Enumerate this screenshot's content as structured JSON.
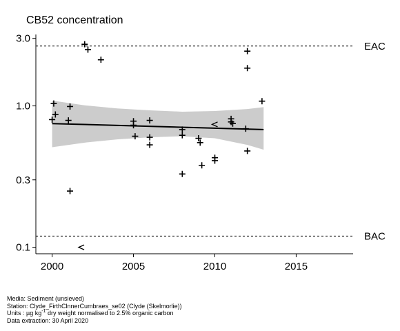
{
  "chart_data": {
    "type": "scatter",
    "title": "CB52 concentration",
    "xlabel": "",
    "ylabel": "",
    "y_scale": "log",
    "xlim": [
      1999,
      2018.5
    ],
    "ylim": [
      0.09,
      3.2
    ],
    "x_ticks": [
      2000,
      2005,
      2010,
      2015
    ],
    "x_tick_labels": [
      "2000",
      "2005",
      "2010",
      "2015"
    ],
    "y_ticks": [
      0.1,
      0.3,
      1.0,
      3.0
    ],
    "y_tick_labels": [
      "0.1",
      "0.3",
      "1.0",
      "3.0"
    ],
    "grid": false,
    "legend": "none",
    "reference_lines": [
      {
        "label": "EAC",
        "value": 2.65,
        "style": "dashed"
      },
      {
        "label": "BAC",
        "value": 0.12,
        "style": "dashed"
      }
    ],
    "points": [
      {
        "x": 2000.0,
        "y": 0.8,
        "marker": "+"
      },
      {
        "x": 2000.1,
        "y": 1.04,
        "marker": "+"
      },
      {
        "x": 2000.2,
        "y": 0.87,
        "marker": "+"
      },
      {
        "x": 2001.0,
        "y": 0.79,
        "marker": "+"
      },
      {
        "x": 2001.1,
        "y": 0.99,
        "marker": "+"
      },
      {
        "x": 2001.1,
        "y": 0.25,
        "marker": "+"
      },
      {
        "x": 2002.0,
        "y": 2.73,
        "marker": "+"
      },
      {
        "x": 2002.2,
        "y": 2.5,
        "marker": "+"
      },
      {
        "x": 2001.8,
        "y": 0.1,
        "marker": "<"
      },
      {
        "x": 2003.0,
        "y": 2.12,
        "marker": "+"
      },
      {
        "x": 2005.0,
        "y": 0.78,
        "marker": "+"
      },
      {
        "x": 2005.0,
        "y": 0.73,
        "marker": "+"
      },
      {
        "x": 2005.1,
        "y": 0.61,
        "marker": "+"
      },
      {
        "x": 2006.0,
        "y": 0.79,
        "marker": "+"
      },
      {
        "x": 2006.0,
        "y": 0.6,
        "marker": "+"
      },
      {
        "x": 2006.0,
        "y": 0.53,
        "marker": "+"
      },
      {
        "x": 2008.0,
        "y": 0.68,
        "marker": "+"
      },
      {
        "x": 2008.0,
        "y": 0.62,
        "marker": "+"
      },
      {
        "x": 2008.0,
        "y": 0.33,
        "marker": "+"
      },
      {
        "x": 2009.0,
        "y": 0.59,
        "marker": "+"
      },
      {
        "x": 2009.1,
        "y": 0.55,
        "marker": "+"
      },
      {
        "x": 2009.2,
        "y": 0.38,
        "marker": "+"
      },
      {
        "x": 2010.0,
        "y": 0.41,
        "marker": "+"
      },
      {
        "x": 2010.0,
        "y": 0.43,
        "marker": "+"
      },
      {
        "x": 2010.0,
        "y": 0.74,
        "marker": "<"
      },
      {
        "x": 2011.0,
        "y": 0.81,
        "marker": "+"
      },
      {
        "x": 2011.0,
        "y": 0.77,
        "marker": "+"
      },
      {
        "x": 2011.1,
        "y": 0.75,
        "marker": "+"
      },
      {
        "x": 2012.0,
        "y": 2.44,
        "marker": "+"
      },
      {
        "x": 2012.0,
        "y": 1.85,
        "marker": "+"
      },
      {
        "x": 2011.9,
        "y": 0.69,
        "marker": "+"
      },
      {
        "x": 2012.0,
        "y": 0.48,
        "marker": "+"
      },
      {
        "x": 2012.9,
        "y": 1.08,
        "marker": "+"
      }
    ],
    "trend": {
      "x": [
        2000,
        2013
      ],
      "y": [
        0.75,
        0.68
      ],
      "band": {
        "x": [
          2000,
          2002,
          2004,
          2006,
          2008,
          2010,
          2012,
          2013
        ],
        "lower": [
          0.51,
          0.55,
          0.58,
          0.6,
          0.61,
          0.59,
          0.53,
          0.49
        ],
        "upper": [
          1.09,
          1.01,
          0.96,
          0.93,
          0.91,
          0.92,
          0.95,
          0.98
        ]
      }
    }
  },
  "footer": {
    "media": "Media: Sediment (unsieved)",
    "station": "Station: Clyde_FirthClnnerCumbraes_se02 (Clyde (Skelmorlie))",
    "units_prefix": "Units : µg kg",
    "units_sup": "-1",
    "units_suffix": " dry weight normalised to 2.5% organic carbon",
    "extraction": "Data extraction: 30 April 2020"
  }
}
